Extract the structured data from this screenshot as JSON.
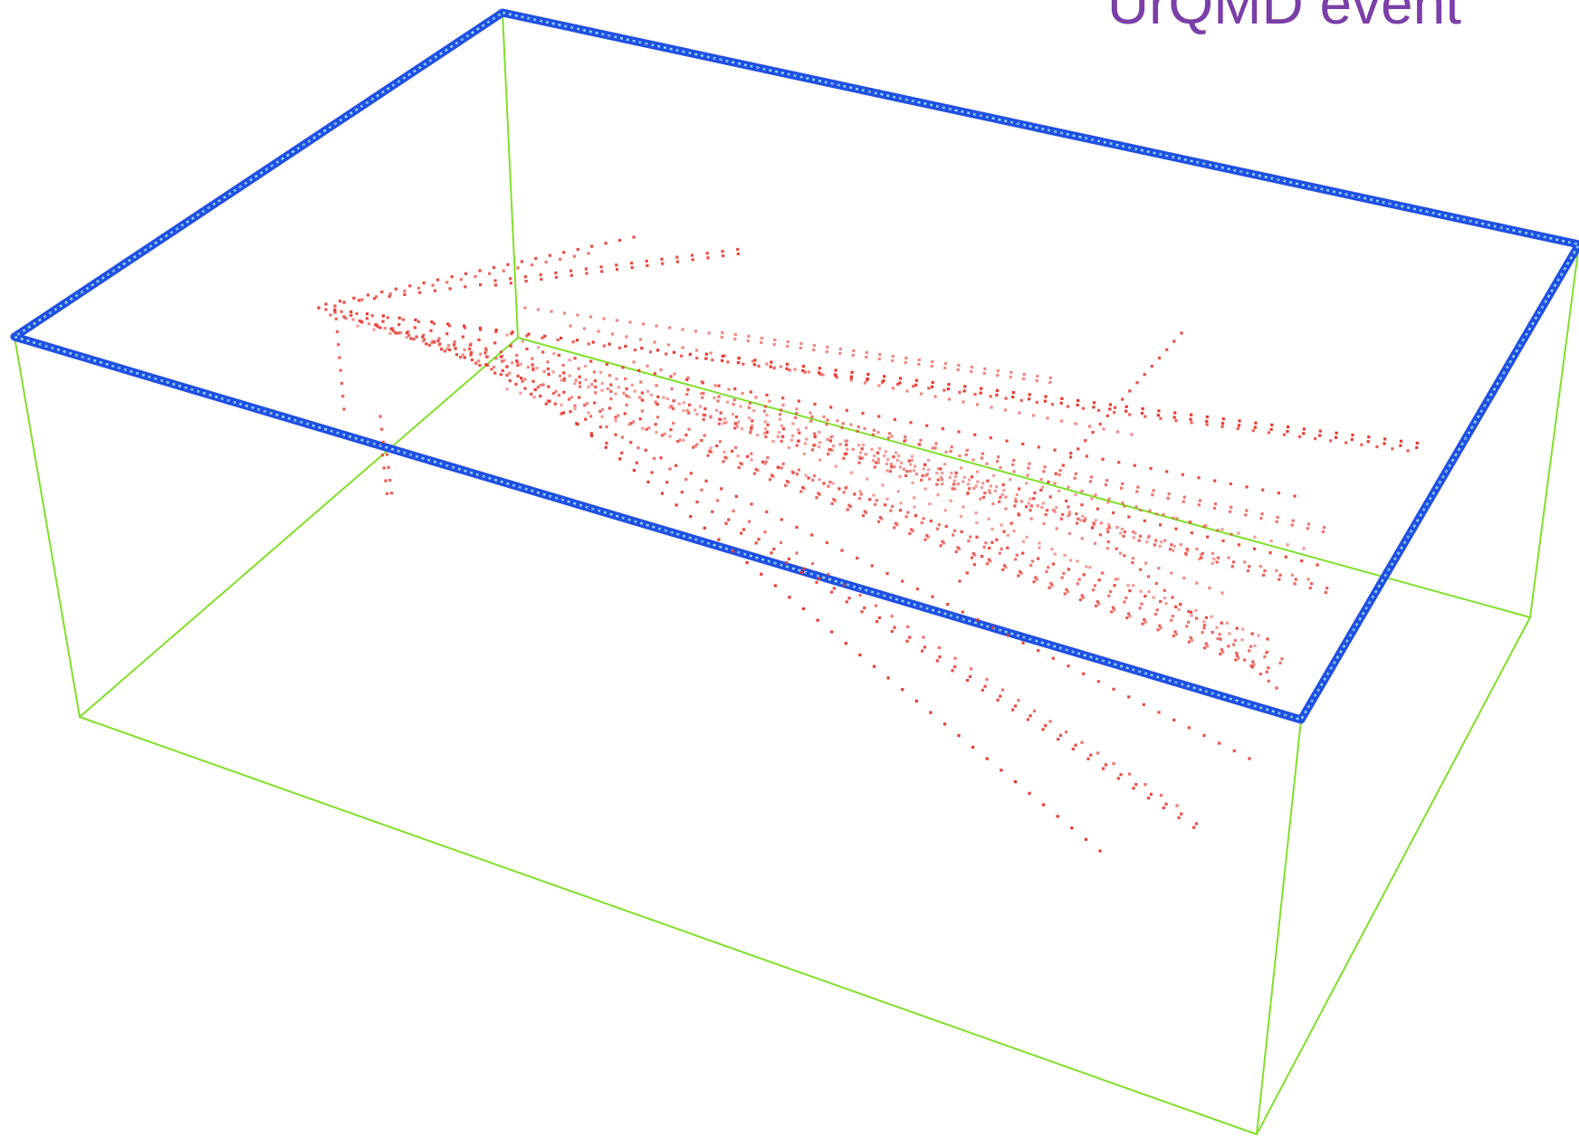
{
  "caption": "UrQMD event",
  "colors": {
    "frame_edges": "#7fe02a",
    "plate_edges": "#2050e0",
    "plate_highlight": "#8fd7ff",
    "track_hits": "#e8392e",
    "caption": "#7b3fa8",
    "background": "#ffffff"
  },
  "tracks": {
    "visible_track_count": 32
  }
}
